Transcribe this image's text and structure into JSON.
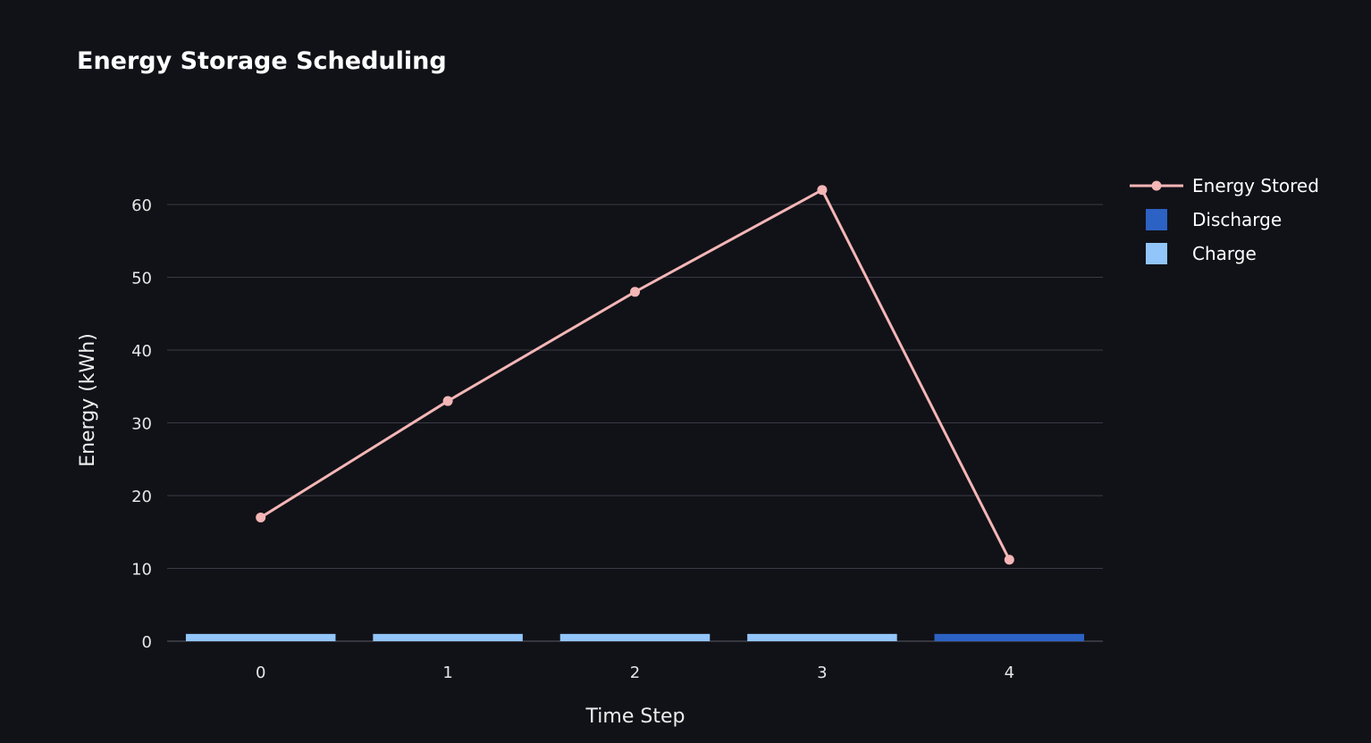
{
  "chart_data": {
    "type": "bar",
    "title": "Energy Storage Scheduling",
    "xlabel": "Time Step",
    "ylabel": "Energy (kWh)",
    "categories": [
      "0",
      "1",
      "2",
      "3",
      "4"
    ],
    "x_ticks": [
      "0",
      "1",
      "2",
      "3",
      "4"
    ],
    "y_ticks": [
      "0",
      "10",
      "20",
      "30",
      "40",
      "50",
      "60"
    ],
    "ylim": [
      0,
      65
    ],
    "grid": true,
    "legend_position": "top-right",
    "series": [
      {
        "name": "Energy Stored",
        "kind": "line",
        "color": "#f4b6b6",
        "values": [
          17,
          33,
          48,
          62,
          11.2
        ]
      },
      {
        "name": "Discharge",
        "kind": "bar",
        "color": "#2c62c4",
        "values": [
          0,
          0,
          0,
          0,
          1
        ]
      },
      {
        "name": "Charge",
        "kind": "bar",
        "color": "#92c5f9",
        "values": [
          1,
          1,
          1,
          1,
          0
        ]
      }
    ]
  },
  "colors": {
    "background": "#111218",
    "grid": "#3a3b45",
    "text": "#ffffff"
  }
}
